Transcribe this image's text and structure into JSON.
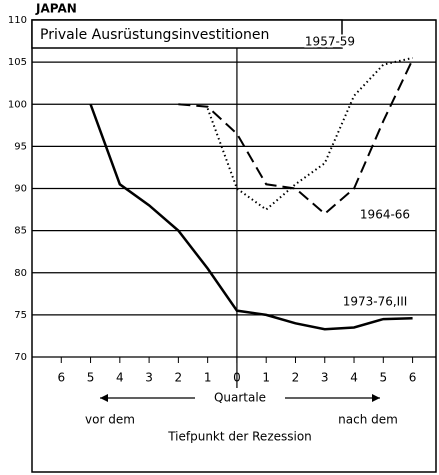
{
  "chart_data": {
    "type": "line",
    "title": "JAPAN",
    "subtitle": "Privale Ausrüstungsinvestitionen",
    "x_label": "Quartale",
    "annotations": [
      "vor dem",
      "nach dem",
      "Tiefpunkt der Rezession"
    ],
    "x": [
      -5,
      -4,
      -3,
      -2,
      -1,
      0,
      1,
      2,
      3,
      4,
      5,
      6
    ],
    "series": [
      {
        "name": "1973-76,III",
        "color": "#000000",
        "style": "solid",
        "values": [
          100,
          90.5,
          88,
          85,
          80.5,
          75.5,
          75,
          74,
          73.3,
          73.5,
          74.5,
          74.6
        ]
      },
      {
        "name": "1964-66",
        "color": "#000000",
        "style": "dashed",
        "values": [
          null,
          null,
          null,
          100,
          99.7,
          96.5,
          90.5,
          90,
          87,
          90,
          98,
          105.3
        ]
      },
      {
        "name": "1957-59",
        "color": "#000000",
        "style": "dotted",
        "values": [
          null,
          null,
          null,
          null,
          99.5,
          90,
          87.5,
          90.5,
          93,
          101,
          104.7,
          105.5
        ]
      }
    ],
    "xlim": [
      -7,
      6.8
    ],
    "xticks": [
      {
        "value": -6,
        "label": "6"
      },
      {
        "value": -5,
        "label": "5"
      },
      {
        "value": -4,
        "label": "4"
      },
      {
        "value": -3,
        "label": "3"
      },
      {
        "value": -2,
        "label": "2"
      },
      {
        "value": -1,
        "label": "1"
      },
      0,
      1,
      2,
      3,
      4,
      5,
      6
    ],
    "ylim": [
      70,
      110
    ],
    "yticks": [
      70,
      75,
      80,
      85,
      90,
      95,
      100,
      105,
      110
    ],
    "grid": true
  }
}
